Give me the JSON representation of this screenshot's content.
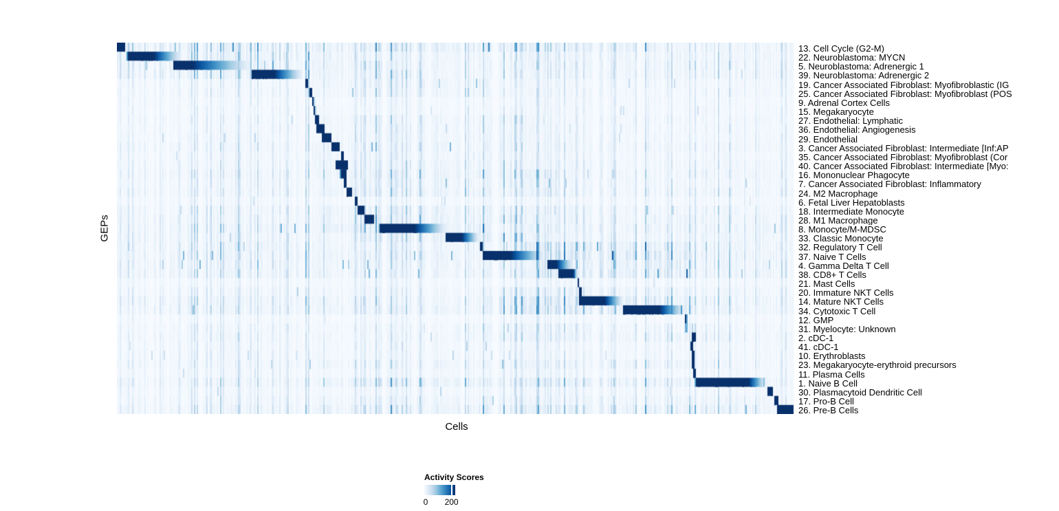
{
  "chart_data": {
    "type": "heatmap",
    "title": "",
    "xlabel": "Cells",
    "ylabel": "GEPs",
    "grid": false,
    "x_tick_labels": [],
    "value_range": [
      0,
      225
    ],
    "noise_seed": 42,
    "colormap": {
      "name": "Blues",
      "stops": [
        "#f7fbff",
        "#deebf7",
        "#c6dbef",
        "#9ecae1",
        "#6baed6",
        "#4292c6",
        "#2171b5",
        "#08519c",
        "#08306b"
      ]
    },
    "legend": {
      "title": "Activity Scores",
      "position": "bottom",
      "tick_labels": [
        "0",
        "200"
      ],
      "tick_fraction": 0.88
    },
    "rows": [
      {
        "label": "13. Cell Cycle (G2-M)",
        "b0": 0.0,
        "b1": 0.013,
        "b2": 0.013,
        "peak": 1,
        "noise": 0.5,
        "hot": [
          0.0,
          0.8,
          1.5
        ]
      },
      {
        "label": "22. Neuroblastoma: MYCN",
        "b0": 0.016,
        "b1": 0.055,
        "b2": 0.095,
        "peak": 1,
        "noise": 0.45,
        "hot": [
          0.0,
          0.35,
          1.5
        ]
      },
      {
        "label": "5. Neuroblastoma: Adrenergic 1",
        "b0": 0.084,
        "b1": 0.112,
        "b2": 0.196,
        "peak": 1,
        "noise": 0.45,
        "hot": [
          0.0,
          0.4,
          1.4
        ]
      },
      {
        "label": "39. Neuroblastoma: Adrenergic 2",
        "b0": 0.2,
        "b1": 0.233,
        "b2": 0.274,
        "peak": 1,
        "noise": 0.45,
        "hot": [
          0.0,
          0.45,
          1.4
        ]
      },
      {
        "label": "19. Cancer Associated Fibroblast: Myofibroblastic (IG",
        "b0": 0.278,
        "b1": 0.282,
        "b2": 0.282,
        "peak": 1,
        "noise": 0.3,
        "hot": [
          0.28,
          0.55,
          1.6
        ]
      },
      {
        "label": "25. Cancer Associated Fibroblast: Myofibroblast (POS",
        "b0": 0.285,
        "b1": 0.288,
        "b2": 0.288,
        "peak": 1,
        "noise": 0.3,
        "hot": [
          0.28,
          0.55,
          1.5
        ]
      },
      {
        "label": "9. Adrenal Cortex Cells",
        "b0": 0.288,
        "b1": 0.291,
        "b2": 0.291,
        "peak": 1,
        "noise": 0.25,
        "hot": null
      },
      {
        "label": "15. Megakaryocyte",
        "b0": 0.29,
        "b1": 0.293,
        "b2": 0.293,
        "peak": 1,
        "noise": 0.25,
        "hot": null
      },
      {
        "label": "27. Endothelial: Lymphatic",
        "b0": 0.292,
        "b1": 0.298,
        "b2": 0.298,
        "peak": 1,
        "noise": 0.3,
        "hot": [
          0.28,
          0.6,
          1.5
        ]
      },
      {
        "label": "36. Endothelial: Angiogenesis",
        "b0": 0.294,
        "b1": 0.307,
        "b2": 0.307,
        "peak": 1,
        "noise": 0.3,
        "hot": [
          0.28,
          0.6,
          1.5
        ]
      },
      {
        "label": "29. Endothelial",
        "b0": 0.302,
        "b1": 0.318,
        "b2": 0.318,
        "peak": 1,
        "noise": 0.3,
        "hot": [
          0.28,
          0.6,
          1.4
        ]
      },
      {
        "label": "3. Cancer Associated Fibroblast: Intermediate [Inf:AP",
        "b0": 0.318,
        "b1": 0.33,
        "b2": 0.33,
        "peak": 1,
        "noise": 0.35,
        "hot": [
          0.28,
          0.6,
          1.5
        ]
      },
      {
        "label": "35. Cancer Associated Fibroblast: Myofibroblast (Cor",
        "b0": 0.331,
        "b1": 0.335,
        "b2": 0.335,
        "peak": 1,
        "noise": 0.3,
        "hot": [
          0.28,
          0.6,
          1.4
        ]
      },
      {
        "label": "40. Cancer Associated Fibroblast: Intermediate [Myo:",
        "b0": 0.323,
        "b1": 0.341,
        "b2": 0.341,
        "peak": 1,
        "noise": 0.35,
        "hot": [
          0.28,
          0.6,
          1.5
        ]
      },
      {
        "label": "16. Mononuclear Phagocyte",
        "b0": 0.332,
        "b1": 0.34,
        "b2": 0.34,
        "peak": 1,
        "noise": 0.4,
        "hot": [
          0.3,
          0.65,
          1.6
        ]
      },
      {
        "label": "7. Cancer Associated Fibroblast: Inflammatory",
        "b0": 0.336,
        "b1": 0.34,
        "b2": 0.34,
        "peak": 1,
        "noise": 0.35,
        "hot": [
          0.3,
          0.65,
          1.5
        ]
      },
      {
        "label": "24. M2 Macrophage",
        "b0": 0.339,
        "b1": 0.348,
        "b2": 0.348,
        "peak": 1,
        "noise": 0.4,
        "hot": [
          0.3,
          0.65,
          1.5
        ]
      },
      {
        "label": "6. Fetal Liver Hepatoblasts",
        "b0": 0.352,
        "b1": 0.355,
        "b2": 0.355,
        "peak": 1,
        "noise": 0.25,
        "hot": null
      },
      {
        "label": "18. Intermediate Monocyte",
        "b0": 0.355,
        "b1": 0.365,
        "b2": 0.365,
        "peak": 1,
        "noise": 0.4,
        "hot": [
          0.3,
          0.6,
          1.5
        ]
      },
      {
        "label": "28. M1 Macrophage",
        "b0": 0.365,
        "b1": 0.381,
        "b2": 0.381,
        "peak": 1,
        "noise": 0.45,
        "hot": [
          0.3,
          0.6,
          1.5
        ]
      },
      {
        "label": "8. Monocyte/M-MDSC",
        "b0": 0.388,
        "b1": 0.44,
        "b2": 0.487,
        "peak": 1,
        "noise": 0.5,
        "hot": [
          0.3,
          0.55,
          1.8
        ]
      },
      {
        "label": "33. Classic Monocyte",
        "b0": 0.485,
        "b1": 0.51,
        "b2": 0.535,
        "peak": 1,
        "noise": 0.45,
        "hot": [
          0.35,
          0.6,
          1.6
        ]
      },
      {
        "label": "32. Regulatory T Cell",
        "b0": 0.536,
        "b1": 0.54,
        "b2": 0.54,
        "peak": 1,
        "noise": 0.5,
        "hot": [
          0.6,
          0.85,
          1.8
        ]
      },
      {
        "label": "37. Naive T Cells",
        "b0": 0.54,
        "b1": 0.582,
        "b2": 0.632,
        "peak": 1,
        "noise": 0.55,
        "hot": [
          0.62,
          0.85,
          1.8
        ]
      },
      {
        "label": "4. Gamma Delta T Cell",
        "b0": 0.637,
        "b1": 0.65,
        "b2": 0.673,
        "peak": 1,
        "noise": 0.5,
        "hot": [
          0.62,
          0.85,
          1.7
        ]
      },
      {
        "label": "38. CD8+ T Cells",
        "b0": 0.652,
        "b1": 0.675,
        "b2": 0.68,
        "peak": 1,
        "noise": 0.5,
        "hot": [
          0.62,
          0.85,
          1.7
        ]
      },
      {
        "label": "21. Mast Cells",
        "b0": 0.68,
        "b1": 0.682,
        "b2": 0.682,
        "peak": 1,
        "noise": 0.25,
        "hot": null
      },
      {
        "label": "20. Immature NKT Cells",
        "b0": 0.683,
        "b1": 0.686,
        "b2": 0.686,
        "peak": 1,
        "noise": 0.35,
        "hot": [
          0.55,
          0.85,
          1.5
        ]
      },
      {
        "label": "14. Mature NKT Cells",
        "b0": 0.683,
        "b1": 0.721,
        "b2": 0.748,
        "peak": 1,
        "noise": 0.5,
        "hot": [
          0.55,
          0.85,
          1.7
        ]
      },
      {
        "label": "34. Cytotoxic T Cell",
        "b0": 0.748,
        "b1": 0.802,
        "b2": 0.839,
        "peak": 1,
        "noise": 0.5,
        "hot": [
          0.55,
          0.85,
          1.7
        ]
      },
      {
        "label": "12. GMP",
        "b0": 0.839,
        "b1": 0.842,
        "b2": 0.842,
        "peak": 1,
        "noise": 0.2,
        "hot": null
      },
      {
        "label": "31. Myelocyte: Unknown",
        "b0": 0.84,
        "b1": 0.844,
        "b2": 0.844,
        "peak": 0.5,
        "noise": 0.3,
        "hot": [
          0.5,
          0.9,
          1.4
        ]
      },
      {
        "label": "2. cDC-1",
        "b0": 0.85,
        "b1": 0.855,
        "b2": 0.855,
        "peak": 1,
        "noise": 0.35,
        "hot": [
          0.5,
          0.9,
          1.4
        ]
      },
      {
        "label": "41. cDC-1",
        "b0": 0.847,
        "b1": 0.851,
        "b2": 0.851,
        "peak": 1,
        "noise": 0.3,
        "hot": null
      },
      {
        "label": "10. Erythroblasts",
        "b0": 0.849,
        "b1": 0.853,
        "b2": 0.853,
        "peak": 1,
        "noise": 0.3,
        "hot": null
      },
      {
        "label": "23. Megakaryocyte-erythroid precursors",
        "b0": 0.85,
        "b1": 0.853,
        "b2": 0.853,
        "peak": 1,
        "noise": 0.35,
        "hot": [
          0.3,
          0.9,
          1.3
        ]
      },
      {
        "label": "11. Plasma Cells",
        "b0": 0.852,
        "b1": 0.855,
        "b2": 0.855,
        "peak": 1,
        "noise": 0.3,
        "hot": null
      },
      {
        "label": "1. Naive B Cell",
        "b0": 0.855,
        "b1": 0.934,
        "b2": 0.959,
        "peak": 1,
        "noise": 0.45,
        "hot": [
          0.3,
          0.95,
          1.5
        ]
      },
      {
        "label": "30. Plasmacytoid Dendritic Cell",
        "b0": 0.962,
        "b1": 0.969,
        "b2": 0.969,
        "peak": 1,
        "noise": 0.3,
        "hot": null
      },
      {
        "label": "17. Pro-B Cell",
        "b0": 0.971,
        "b1": 0.978,
        "b2": 0.978,
        "peak": 1,
        "noise": 0.35,
        "hot": [
          0.3,
          0.95,
          1.3
        ]
      },
      {
        "label": "26. Pre-B Cells",
        "b0": 0.976,
        "b1": 1.0,
        "b2": 1.0,
        "peak": 1,
        "noise": 0.45,
        "hot": [
          0.3,
          0.95,
          1.5
        ]
      }
    ]
  }
}
